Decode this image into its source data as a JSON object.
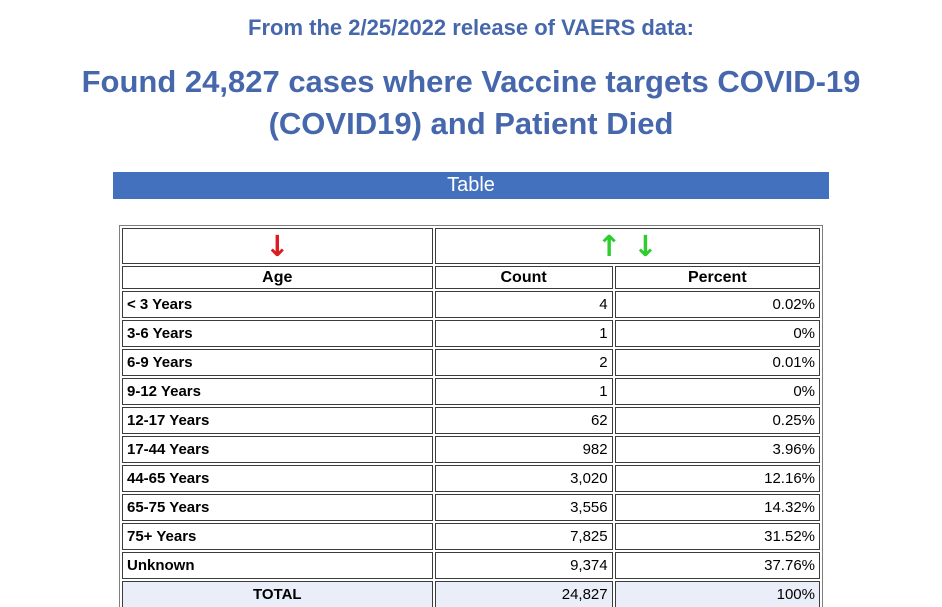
{
  "header": {
    "release_line": "From the 2/25/2022 release of VAERS data:",
    "title_line1": "Found 24,827 cases where Vaccine targets COVID-19",
    "title_line2": "(COVID19) and Patient Died",
    "section_label": "Table"
  },
  "icons": {
    "sort_desc_red": "↓",
    "sort_asc_green": "↑",
    "sort_desc_green": "↓"
  },
  "colors": {
    "heading_blue": "#4667ac",
    "banner_blue": "#4471bd",
    "banner_text": "#ffffff",
    "red_arrow": "#de1b21",
    "green_arrow": "#2ecd2e",
    "total_row_bg": "#e9eef8"
  },
  "table": {
    "columns": [
      "Age",
      "Count",
      "Percent"
    ],
    "rows": [
      [
        "< 3 Years",
        "4",
        "0.02%"
      ],
      [
        "3-6 Years",
        "1",
        "0%"
      ],
      [
        "6-9 Years",
        "2",
        "0.01%"
      ],
      [
        "9-12 Years",
        "1",
        "0%"
      ],
      [
        "12-17 Years",
        "62",
        "0.25%"
      ],
      [
        "17-44 Years",
        "982",
        "3.96%"
      ],
      [
        "44-65 Years",
        "3,020",
        "12.16%"
      ],
      [
        "65-75 Years",
        "3,556",
        "14.32%"
      ],
      [
        "75+ Years",
        "7,825",
        "31.52%"
      ],
      [
        "Unknown",
        "9,374",
        "37.76%"
      ]
    ],
    "total": [
      "TOTAL",
      "24,827",
      "100%"
    ]
  }
}
